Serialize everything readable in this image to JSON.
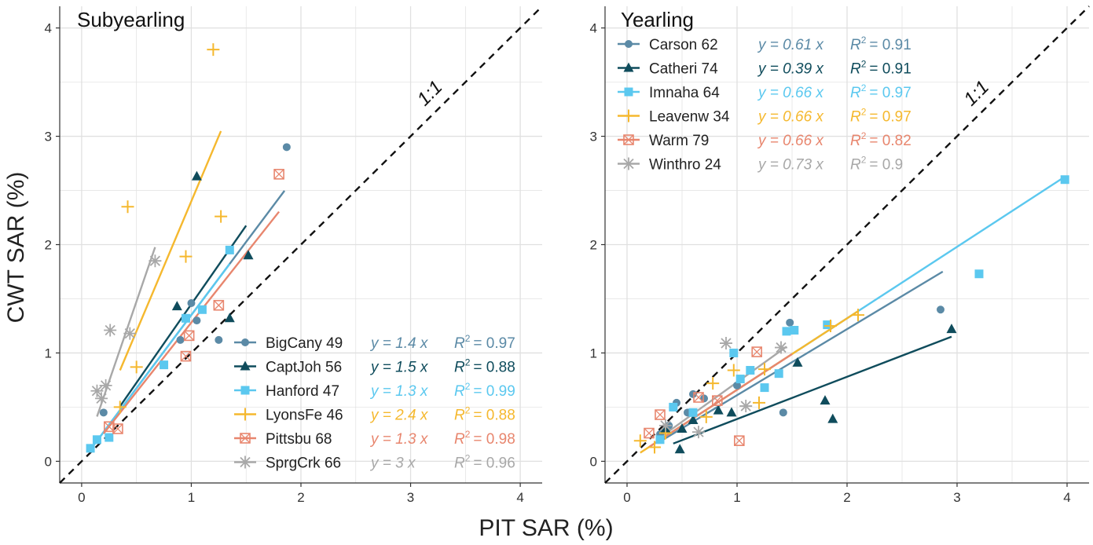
{
  "figure": {
    "ylabel": "CWT SAR (%)",
    "xlabel": "PIT SAR (%)"
  },
  "colors": {
    "blue_grey": "#5b8aa6",
    "dark_teal": "#0f4c5c",
    "light_blue": "#5bc8ef",
    "orange": "#f5b82e",
    "salmon": "#e8866e",
    "grey": "#a8a8a8",
    "grid": "#e0e0e0",
    "text": "#222222"
  },
  "chart_data": [
    {
      "type": "scatter",
      "title": "Subyearling",
      "xlim": [
        -0.2,
        4.2
      ],
      "ylim": [
        -0.2,
        4.2
      ],
      "xticks": [
        "0",
        "1",
        "2",
        "3",
        "4"
      ],
      "yticks": [
        "0",
        "1",
        "2",
        "3",
        "4"
      ],
      "grid": true,
      "identity_line_label": "1:1",
      "legend_position": "bottom-right",
      "series": [
        {
          "name": "BigCany 49",
          "color_key": "blue_grey",
          "marker": "circle",
          "eq": "y = 1.4 x",
          "r2_label": "R",
          "r2": "= 0.97",
          "slope": 1.35,
          "fit_x": [
            0.15,
            1.85
          ],
          "points": [
            [
              0.2,
              0.45
            ],
            [
              0.9,
              1.12
            ],
            [
              1.0,
              1.46
            ],
            [
              1.05,
              1.3
            ],
            [
              1.25,
              1.12
            ],
            [
              1.87,
              2.9
            ]
          ]
        },
        {
          "name": "CaptJoh 56",
          "color_key": "dark_teal",
          "marker": "triangle",
          "eq": "y = 1.5 x",
          "r2_label": "R",
          "r2": "= 0.88",
          "slope": 1.45,
          "fit_x": [
            0.35,
            1.5
          ],
          "points": [
            [
              0.87,
              1.43
            ],
            [
              1.05,
              2.63
            ],
            [
              1.35,
              1.32
            ],
            [
              1.52,
              1.9
            ]
          ]
        },
        {
          "name": "Hanford 47",
          "color_key": "light_blue",
          "marker": "square",
          "eq": "y = 1.3 x",
          "r2_label": "R",
          "r2": "= 0.99",
          "slope": 1.35,
          "fit_x": [
            0.08,
            1.35
          ],
          "points": [
            [
              0.08,
              0.12
            ],
            [
              0.14,
              0.2
            ],
            [
              0.25,
              0.22
            ],
            [
              0.75,
              0.89
            ],
            [
              0.95,
              1.32
            ],
            [
              1.1,
              1.4
            ],
            [
              1.35,
              1.95
            ]
          ]
        },
        {
          "name": "LyonsFe 46",
          "color_key": "orange",
          "marker": "plus",
          "eq": "y = 2.4 x",
          "r2_label": "R",
          "r2": "= 0.88",
          "slope": 2.4,
          "fit_x": [
            0.35,
            1.27
          ],
          "points": [
            [
              0.35,
              0.5
            ],
            [
              0.42,
              2.35
            ],
            [
              0.5,
              0.87
            ],
            [
              0.95,
              1.89
            ],
            [
              1.2,
              3.8
            ],
            [
              1.27,
              2.26
            ]
          ]
        },
        {
          "name": "Pittsbu 68",
          "color_key": "salmon",
          "marker": "square-x",
          "eq": "y = 1.3 x",
          "r2_label": "R",
          "r2": "= 0.98",
          "slope": 1.28,
          "fit_x": [
            0.2,
            1.8
          ],
          "points": [
            [
              0.25,
              0.32
            ],
            [
              0.33,
              0.3
            ],
            [
              0.95,
              0.97
            ],
            [
              0.98,
              1.16
            ],
            [
              1.25,
              1.44
            ],
            [
              1.8,
              2.65
            ]
          ]
        },
        {
          "name": "SprgCrk 66",
          "color_key": "grey",
          "marker": "asterisk",
          "eq": "y = 3 x",
          "r2_label": "R",
          "r2": "= 0.96",
          "slope": 2.95,
          "fit_x": [
            0.14,
            0.67
          ],
          "points": [
            [
              0.14,
              0.65
            ],
            [
              0.18,
              0.58
            ],
            [
              0.22,
              0.7
            ],
            [
              0.26,
              1.21
            ],
            [
              0.44,
              1.18
            ],
            [
              0.67,
              1.85
            ]
          ]
        }
      ]
    },
    {
      "type": "scatter",
      "title": "Yearling",
      "xlim": [
        -0.2,
        4.2
      ],
      "ylim": [
        -0.2,
        4.2
      ],
      "xticks": [
        "0",
        "1",
        "2",
        "3",
        "4"
      ],
      "yticks": [
        "0",
        "1",
        "2",
        "3",
        "4"
      ],
      "grid": true,
      "identity_line_label": "1:1",
      "legend_position": "top-left",
      "series": [
        {
          "name": "Carson 62",
          "color_key": "blue_grey",
          "marker": "circle",
          "eq": "y = 0.61 x",
          "r2_label": "R",
          "r2": "= 0.91",
          "slope": 0.61,
          "fit_x": [
            0.3,
            2.87
          ],
          "points": [
            [
              0.3,
              0.25
            ],
            [
              0.38,
              0.33
            ],
            [
              0.45,
              0.54
            ],
            [
              0.55,
              0.45
            ],
            [
              0.6,
              0.62
            ],
            [
              0.7,
              0.58
            ],
            [
              1.0,
              0.7
            ],
            [
              1.42,
              0.45
            ],
            [
              1.48,
              1.28
            ],
            [
              2.85,
              1.4
            ]
          ]
        },
        {
          "name": "Catheri 74",
          "color_key": "dark_teal",
          "marker": "triangle",
          "eq": "y = 0.39 x",
          "r2_label": "R",
          "r2": "= 0.91",
          "slope": 0.39,
          "fit_x": [
            0.42,
            2.95
          ],
          "points": [
            [
              0.35,
              0.3
            ],
            [
              0.48,
              0.11
            ],
            [
              0.5,
              0.3
            ],
            [
              0.6,
              0.38
            ],
            [
              0.83,
              0.47
            ],
            [
              0.95,
              0.45
            ],
            [
              1.55,
              0.91
            ],
            [
              1.8,
              0.56
            ],
            [
              1.87,
              0.39
            ],
            [
              2.95,
              1.22
            ]
          ]
        },
        {
          "name": "Imnaha 64",
          "color_key": "light_blue",
          "marker": "square",
          "eq": "y = 0.66 x",
          "r2_label": "R",
          "r2": "= 0.97",
          "slope": 0.66,
          "fit_x": [
            0.25,
            3.98
          ],
          "points": [
            [
              0.3,
              0.2
            ],
            [
              0.42,
              0.5
            ],
            [
              0.6,
              0.45
            ],
            [
              0.97,
              1.0
            ],
            [
              1.03,
              0.76
            ],
            [
              1.12,
              0.84
            ],
            [
              1.25,
              0.68
            ],
            [
              1.38,
              0.81
            ],
            [
              1.45,
              1.2
            ],
            [
              1.52,
              1.21
            ],
            [
              1.82,
              1.26
            ],
            [
              3.2,
              1.73
            ],
            [
              3.98,
              2.6
            ]
          ]
        },
        {
          "name": "Leavenw 34",
          "color_key": "orange",
          "marker": "plus",
          "eq": "y = 0.66 x",
          "r2_label": "R",
          "r2": "= 0.97",
          "slope": 0.66,
          "fit_x": [
            0.12,
            2.1
          ],
          "points": [
            [
              0.12,
              0.19
            ],
            [
              0.25,
              0.13
            ],
            [
              0.35,
              0.26
            ],
            [
              0.72,
              0.41
            ],
            [
              0.78,
              0.72
            ],
            [
              0.97,
              0.84
            ],
            [
              1.2,
              0.54
            ],
            [
              1.25,
              0.85
            ],
            [
              1.85,
              1.25
            ],
            [
              2.1,
              1.35
            ]
          ]
        },
        {
          "name": "Warm 79",
          "color_key": "salmon",
          "marker": "square-x",
          "eq": "y = 0.66 x",
          "r2_label": "R",
          "r2": "= 0.82",
          "slope": 0.66,
          "fit_x": [
            0.2,
            1.5
          ],
          "points": [
            [
              0.2,
              0.26
            ],
            [
              0.3,
              0.43
            ],
            [
              0.65,
              0.59
            ],
            [
              0.82,
              0.56
            ],
            [
              1.02,
              0.19
            ],
            [
              1.18,
              1.01
            ]
          ]
        },
        {
          "name": "Winthro 24",
          "color_key": "grey",
          "marker": "asterisk",
          "eq": "y = 0.73 x",
          "r2_label": "R",
          "r2": "= 0.9",
          "slope": 0.73,
          "fit_x": [
            0.3,
            1.45
          ],
          "points": [
            [
              0.35,
              0.33
            ],
            [
              0.65,
              0.27
            ],
            [
              0.9,
              1.09
            ],
            [
              1.08,
              0.51
            ],
            [
              1.4,
              1.05
            ]
          ]
        }
      ]
    }
  ]
}
